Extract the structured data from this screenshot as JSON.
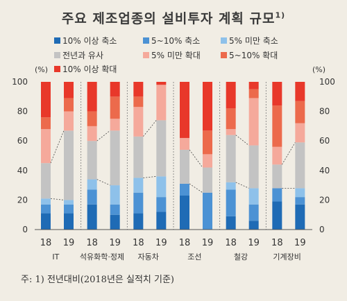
{
  "title": "주요 제조업종의 설비투자 계획 규모",
  "title_note": "1)",
  "footnote": "주: 1) 전년대비(2018년은 실적치 기준)",
  "chart_data": {
    "type": "bar",
    "stacked": true,
    "y_unit_left": "(%)",
    "y_unit_right": "(%)",
    "ylim": [
      0,
      100
    ],
    "yticks": [
      0,
      20,
      40,
      60,
      80,
      100
    ],
    "groups": [
      {
        "name": "IT",
        "years": [
          "18",
          "19"
        ]
      },
      {
        "name": "석유화학·정제",
        "years": [
          "18",
          "19"
        ]
      },
      {
        "name": "자동차",
        "years": [
          "18",
          "19"
        ]
      },
      {
        "name": "조선",
        "years": [
          "18",
          "19"
        ]
      },
      {
        "name": "철강",
        "years": [
          "18",
          "19"
        ]
      },
      {
        "name": "기계장비",
        "years": [
          "18",
          "19"
        ]
      }
    ],
    "series": [
      {
        "name": "10% 이상 축소",
        "color": "#1f6bb5",
        "values": [
          11,
          11,
          17,
          10,
          11,
          12,
          23,
          0,
          9,
          6,
          19,
          17
        ]
      },
      {
        "name": "5~10% 축소",
        "color": "#4c92d4",
        "values": [
          6,
          6,
          10,
          7,
          14,
          10,
          8,
          25,
          18,
          11,
          9,
          5
        ]
      },
      {
        "name": "5% 미만 축소",
        "color": "#8ec1ea",
        "values": [
          4,
          3,
          7,
          13,
          10,
          14,
          0,
          0,
          5,
          11,
          0,
          6
        ]
      },
      {
        "name": "전년과 유사",
        "color": "#c3c3c3",
        "values": [
          24,
          47,
          26,
          37,
          28,
          38,
          23,
          17,
          32,
          29,
          16,
          31
        ]
      },
      {
        "name": "5% 미만 확대",
        "color": "#f5a99b",
        "values": [
          23,
          13,
          10,
          8,
          20,
          24,
          8,
          9,
          4,
          32,
          12,
          13
        ]
      },
      {
        "name": "5~10% 확대",
        "color": "#ec6a4c",
        "values": [
          8,
          9,
          10,
          15,
          7,
          0,
          0,
          16,
          14,
          6,
          28,
          15
        ]
      },
      {
        "name": "10% 이상 확대",
        "color": "#e8382a",
        "values": [
          24,
          11,
          20,
          10,
          10,
          2,
          38,
          33,
          18,
          5,
          16,
          13
        ]
      }
    ],
    "grid": false,
    "legend_position": "top"
  }
}
